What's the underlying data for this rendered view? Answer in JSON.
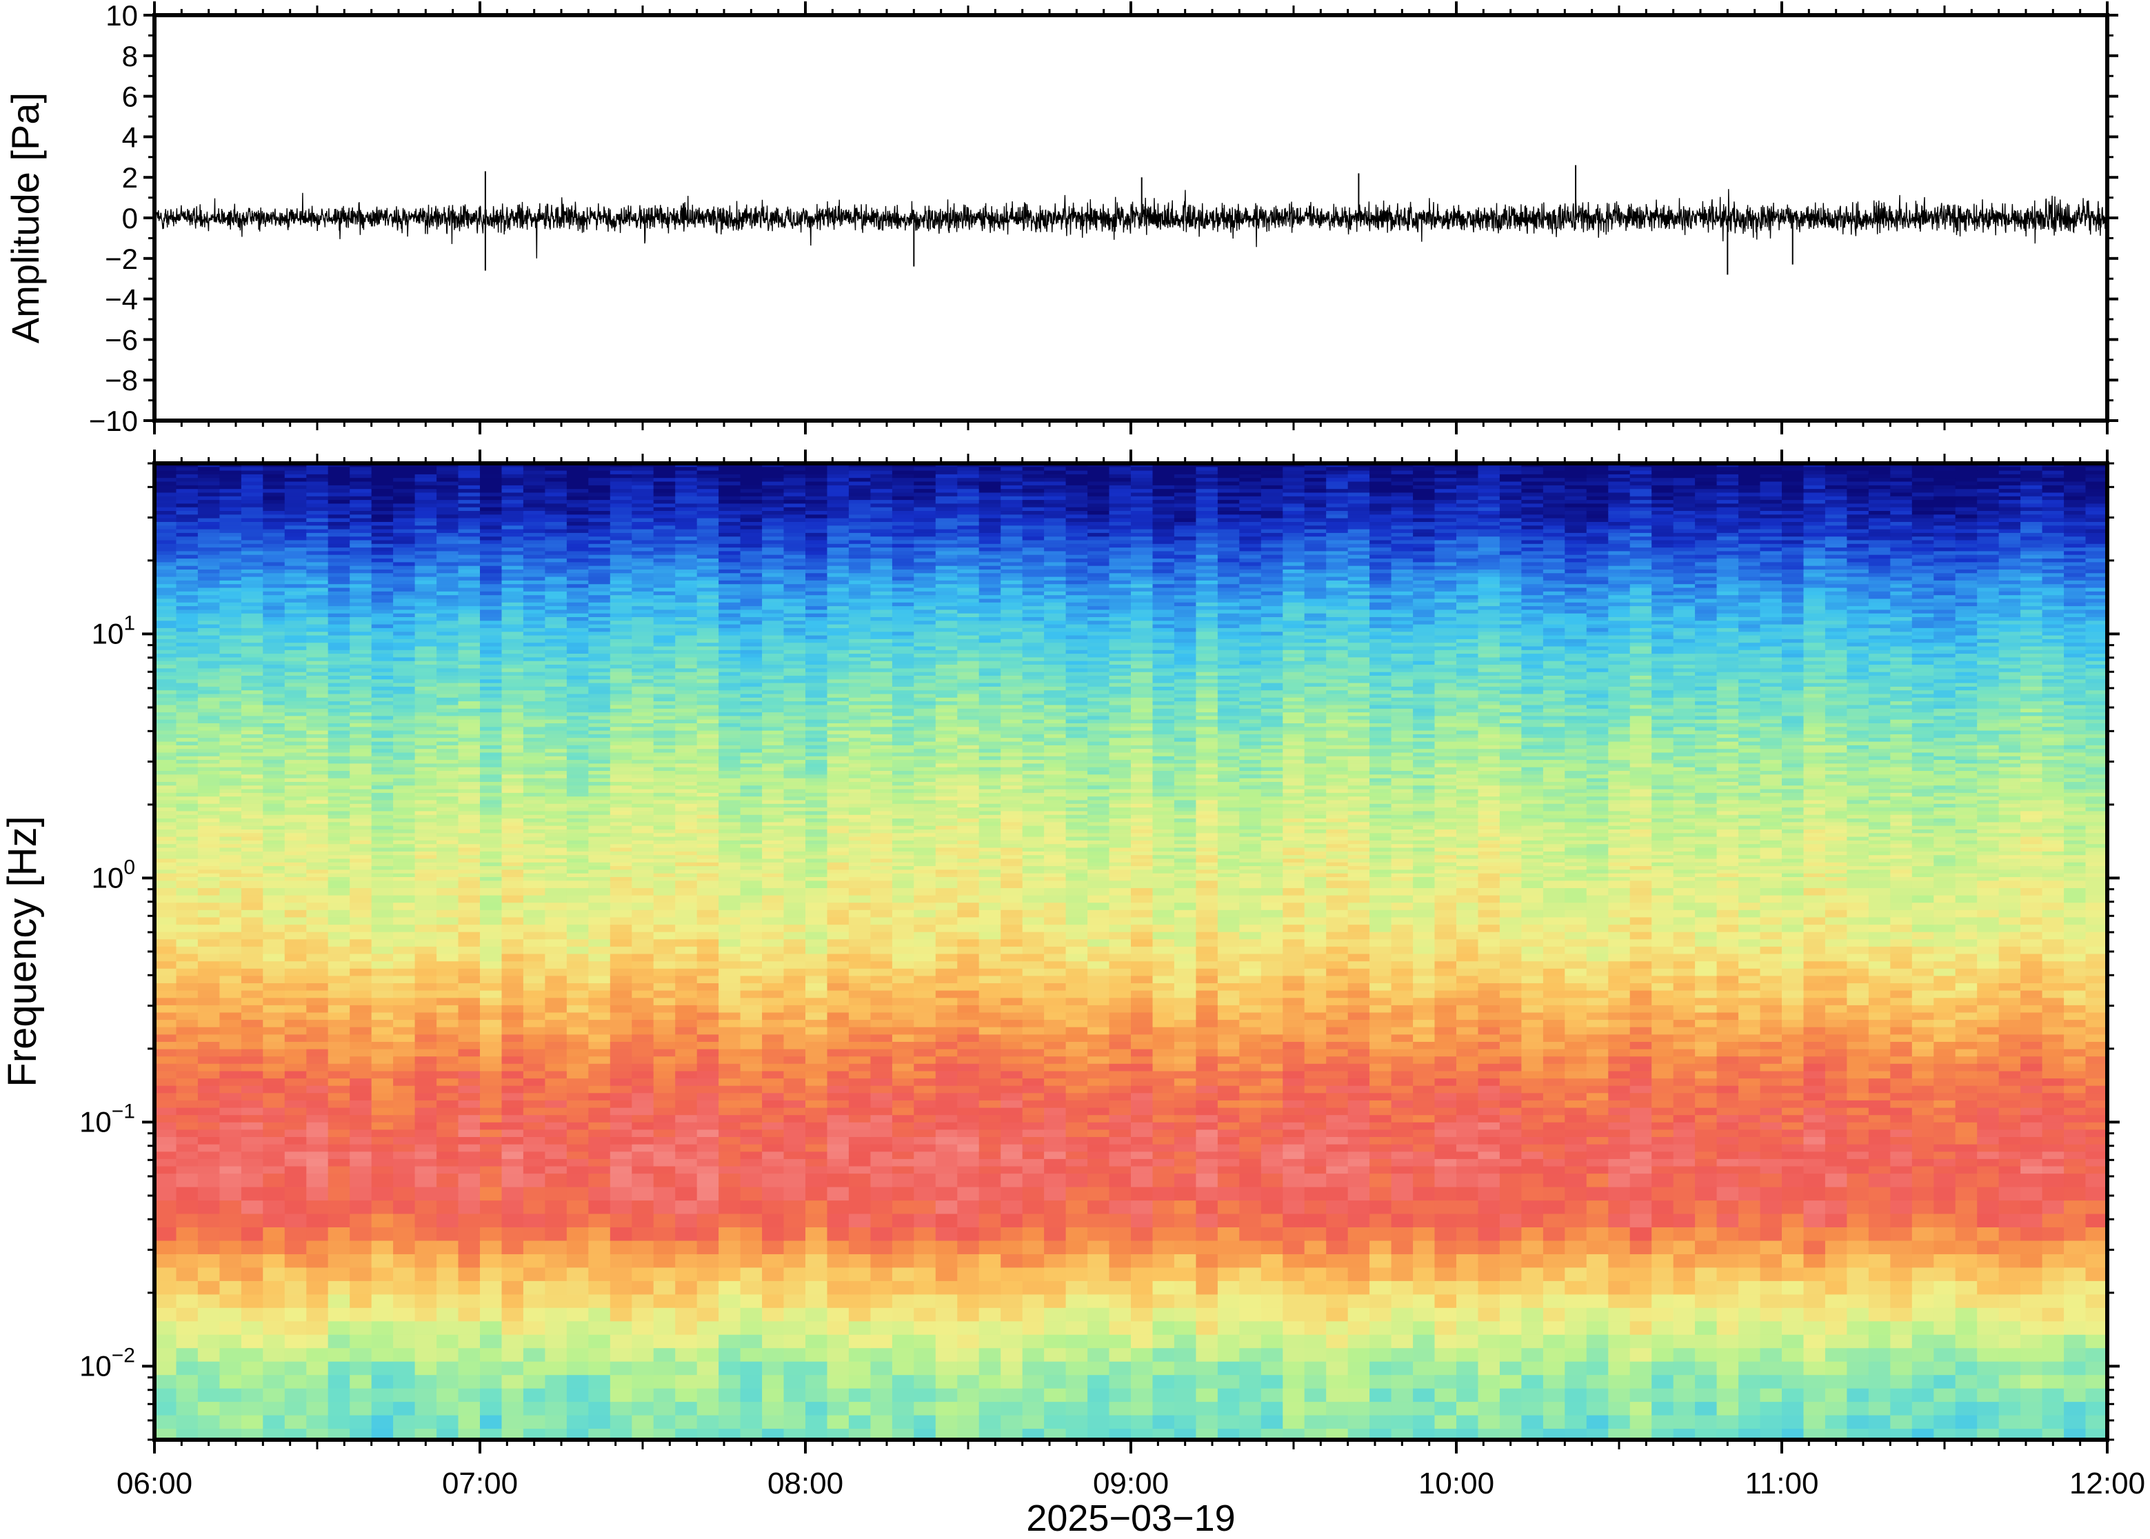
{
  "chart_data": [
    {
      "type": "line",
      "ylabel": "Amplitude [Pa]",
      "ylim": [
        -10,
        10
      ],
      "yticks": [
        10,
        8,
        6,
        4,
        2,
        0,
        -2,
        -4,
        -6,
        -8,
        -10
      ],
      "ytick_labels": [
        "10",
        "8",
        "6",
        "4",
        "2",
        "0",
        "−2",
        "−4",
        "−6",
        "−8",
        "−10"
      ],
      "xlim": [
        "06:00",
        "12:00"
      ],
      "series": [
        {
          "color": "#000000",
          "envelope_times_hours": [
            6.0,
            6.5,
            7.0,
            7.5,
            8.0,
            8.5,
            9.0,
            9.5,
            10.0,
            10.5,
            11.0,
            11.5,
            12.0
          ],
          "envelope_amplitude_pa": [
            0.8,
            0.9,
            1.1,
            1.0,
            1.0,
            1.1,
            1.2,
            1.0,
            1.1,
            1.2,
            1.1,
            1.2,
            1.2
          ],
          "peak_events": [
            {
              "time": "07:01",
              "value": 2.3
            },
            {
              "time": "07:01",
              "value": -2.6
            },
            {
              "time": "08:20",
              "value": -2.4
            },
            {
              "time": "09:02",
              "value": 2.0
            },
            {
              "time": "09:42",
              "value": 2.2
            },
            {
              "time": "10:22",
              "value": 2.6
            },
            {
              "time": "10:50",
              "value": -2.8
            },
            {
              "time": "11:02",
              "value": -2.3
            }
          ]
        }
      ]
    },
    {
      "type": "heatmap",
      "ylabel": "Frequency [Hz]",
      "yscale": "log",
      "ylim": [
        0.005,
        50
      ],
      "yticks": [
        0.01,
        0.1,
        1,
        10
      ],
      "ytick_labels": [
        {
          "base": "10",
          "exp": "−2"
        },
        {
          "base": "10",
          "exp": "−1"
        },
        {
          "base": "10",
          "exp": "0"
        },
        {
          "base": "10",
          "exp": "1"
        }
      ],
      "x": [
        "06:00",
        "07:00",
        "08:00",
        "09:00",
        "10:00",
        "11:00",
        "12:00"
      ],
      "xlabel": "2025−03−19",
      "colormap": "rainbow (blue = low power, red = high power)",
      "colormap_stops": [
        "#0a0a7a",
        "#1530c8",
        "#2a7ae6",
        "#3cc2f0",
        "#6fe0c8",
        "#b9f28f",
        "#f0f08a",
        "#fbc45f",
        "#f7904a",
        "#ef5a55",
        "#f58b86"
      ],
      "relative_power_profile": [
        {
          "frequency_hz": 50,
          "level": 0.0
        },
        {
          "frequency_hz": 30,
          "level": 0.08
        },
        {
          "frequency_hz": 15,
          "level": 0.25
        },
        {
          "frequency_hz": 8,
          "level": 0.36
        },
        {
          "frequency_hz": 4,
          "level": 0.45
        },
        {
          "frequency_hz": 1.5,
          "level": 0.55
        },
        {
          "frequency_hz": 0.6,
          "level": 0.6
        },
        {
          "frequency_hz": 0.3,
          "level": 0.72
        },
        {
          "frequency_hz": 0.15,
          "level": 0.85
        },
        {
          "frequency_hz": 0.07,
          "level": 0.93
        },
        {
          "frequency_hz": 0.04,
          "level": 0.88
        },
        {
          "frequency_hz": 0.025,
          "level": 0.72
        },
        {
          "frequency_hz": 0.015,
          "level": 0.58
        },
        {
          "frequency_hz": 0.01,
          "level": 0.47
        },
        {
          "frequency_hz": 0.005,
          "level": 0.4
        }
      ]
    }
  ]
}
